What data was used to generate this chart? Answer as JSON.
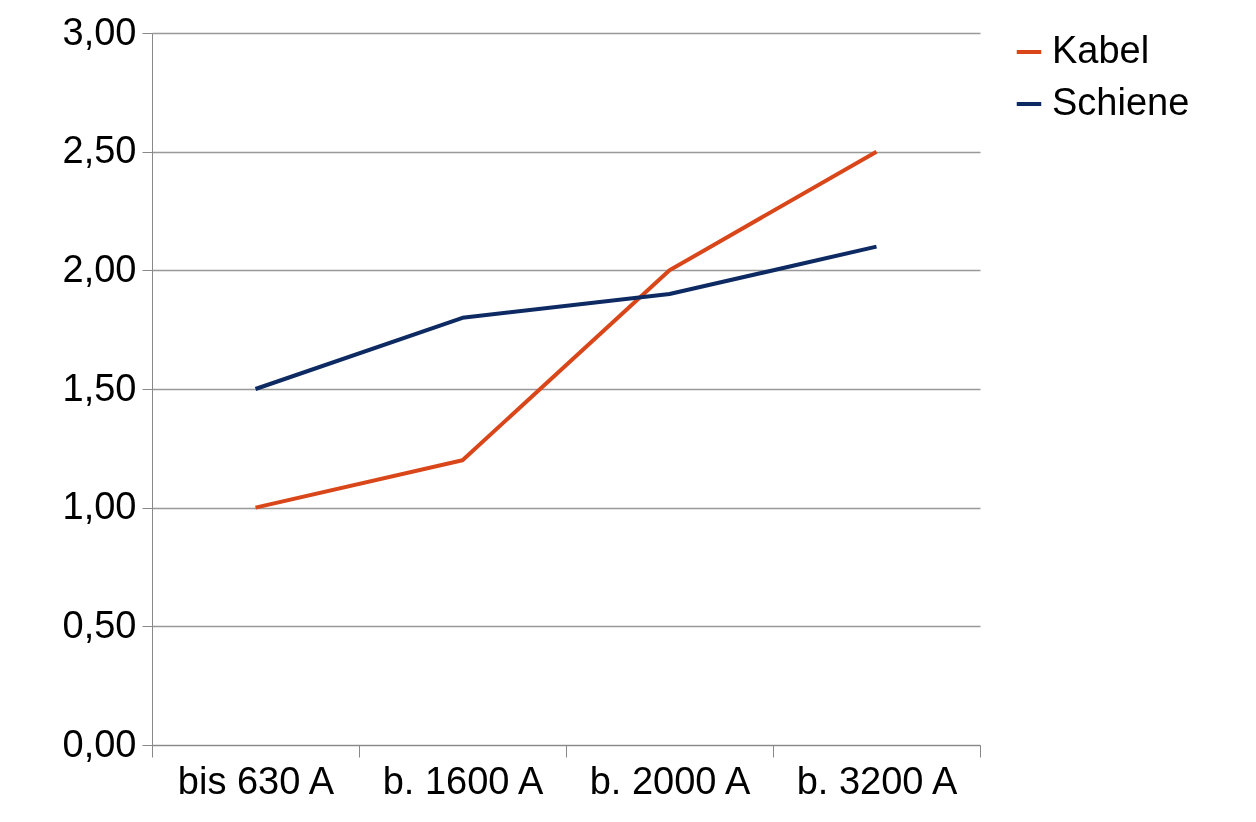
{
  "chart_data": {
    "type": "line",
    "categories": [
      "bis 630 A",
      "b. 1600 A",
      "b. 2000 A",
      "b. 3200 A"
    ],
    "series": [
      {
        "name": "Kabel",
        "color": "#d9461a",
        "values": [
          1.0,
          1.2,
          2.0,
          2.5
        ]
      },
      {
        "name": "Schiene",
        "color": "#0d2a63",
        "values": [
          1.5,
          1.8,
          1.9,
          2.1
        ]
      }
    ],
    "ylim": [
      0,
      3
    ],
    "yticks": [
      {
        "value": 0,
        "label": "0,00"
      },
      {
        "value": 0.5,
        "label": "0,50"
      },
      {
        "value": 1,
        "label": "1,00"
      },
      {
        "value": 1.5,
        "label": "1,50"
      },
      {
        "value": 2,
        "label": "2,00"
      },
      {
        "value": 2.5,
        "label": "2,50"
      },
      {
        "value": 3,
        "label": "3,00"
      }
    ],
    "grid": "y",
    "legend": "right",
    "marker": "none",
    "line_style": "solid"
  }
}
